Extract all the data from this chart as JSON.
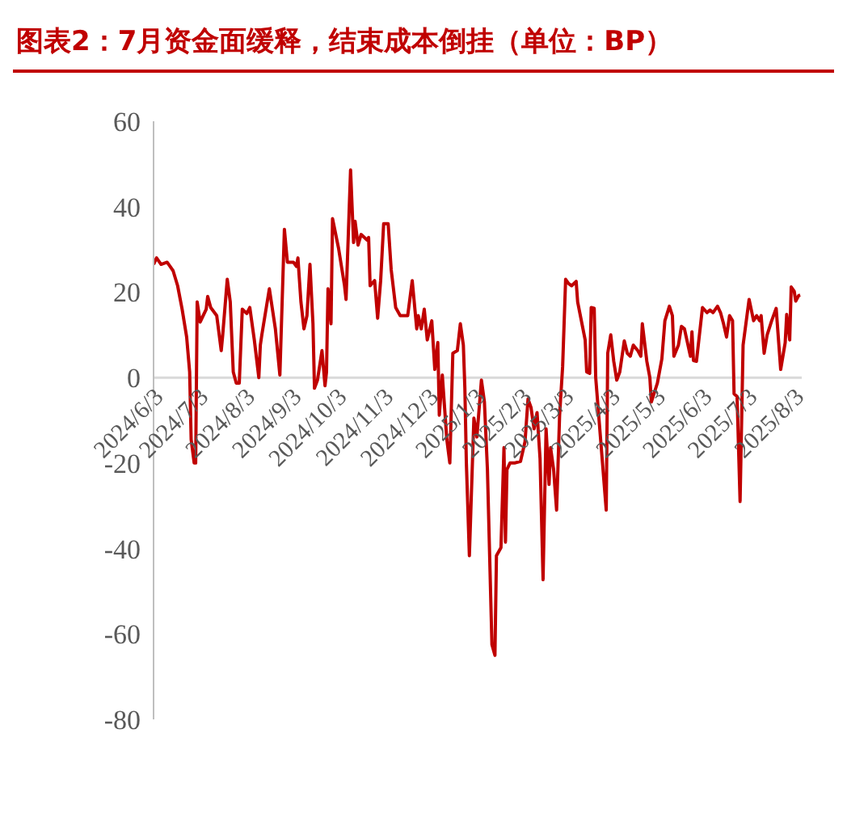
{
  "chart_data": {
    "type": "line",
    "title": "图表2：7月资金面缓释，结束成本倒挂（单位：BP）",
    "x": [
      "2024-06-03",
      "2024-06-05",
      "2024-06-08",
      "2024-06-12",
      "2024-06-14",
      "2024-06-16",
      "2024-06-19",
      "2024-06-22",
      "2024-06-25",
      "2024-06-27",
      "2024-06-28",
      "2024-06-30",
      "2024-07-01",
      "2024-07-02",
      "2024-07-04",
      "2024-07-08",
      "2024-07-09",
      "2024-07-11",
      "2024-07-15",
      "2024-07-18",
      "2024-07-19",
      "2024-07-22",
      "2024-07-24",
      "2024-07-26",
      "2024-07-28",
      "2024-07-30",
      "2024-08-01",
      "2024-08-04",
      "2024-08-06",
      "2024-08-09",
      "2024-08-12",
      "2024-08-13",
      "2024-08-14",
      "2024-08-19",
      "2024-08-23",
      "2024-08-26",
      "2024-08-29",
      "2024-08-31",
      "2024-09-04",
      "2024-09-06",
      "2024-09-07",
      "2024-09-09",
      "2024-09-11",
      "2024-09-13",
      "2024-09-15",
      "2024-09-17",
      "2024-09-18",
      "2024-09-20",
      "2024-09-23",
      "2024-09-25",
      "2024-09-26",
      "2024-09-27",
      "2024-09-29",
      "2024-09-30",
      "2024-10-04",
      "2024-10-08",
      "2024-10-09",
      "2024-10-12",
      "2024-10-14",
      "2024-10-15",
      "2024-10-17",
      "2024-10-19",
      "2024-10-23",
      "2024-10-24",
      "2024-10-25",
      "2024-10-28",
      "2024-10-30",
      "2024-11-01",
      "2024-11-03",
      "2024-11-06",
      "2024-11-08",
      "2024-11-11",
      "2024-11-14",
      "2024-11-19",
      "2024-11-22",
      "2024-11-25",
      "2024-11-26",
      "2024-11-28",
      "2024-11-30",
      "2024-12-02",
      "2024-12-05",
      "2024-12-07",
      "2024-12-09",
      "2024-12-10",
      "2024-12-12",
      "2024-12-15",
      "2024-12-17",
      "2024-12-19",
      "2024-12-22",
      "2024-12-24",
      "2024-12-26",
      "2024-12-27",
      "2024-12-28",
      "2024-12-30",
      "2025-01-02",
      "2025-01-04",
      "2025-01-06",
      "2025-01-07",
      "2025-01-09",
      "2025-01-11",
      "2025-01-14",
      "2025-01-16",
      "2025-01-17",
      "2025-01-20",
      "2025-01-22",
      "2025-01-23",
      "2025-01-24",
      "2025-01-26",
      "2025-01-29",
      "2025-02-02",
      "2025-02-05",
      "2025-02-07",
      "2025-02-09",
      "2025-02-11",
      "2025-02-13",
      "2025-02-15",
      "2025-02-17",
      "2025-02-19",
      "2025-02-21",
      "2025-02-22",
      "2025-02-24",
      "2025-02-26",
      "2025-02-28",
      "2025-03-02",
      "2025-03-04",
      "2025-03-06",
      "2025-03-08",
      "2025-03-11",
      "2025-03-12",
      "2025-03-17",
      "2025-03-18",
      "2025-03-20",
      "2025-03-21",
      "2025-03-23",
      "2025-03-24",
      "2025-03-31",
      "2025-04-01",
      "2025-04-03",
      "2025-04-05",
      "2025-04-07",
      "2025-04-09",
      "2025-04-12",
      "2025-04-14",
      "2025-04-16",
      "2025-04-18",
      "2025-04-21",
      "2025-04-23",
      "2025-04-24",
      "2025-04-27",
      "2025-04-29",
      "2025-04-30",
      "2025-05-04",
      "2025-05-07",
      "2025-05-09",
      "2025-05-12",
      "2025-05-14",
      "2025-05-15",
      "2025-05-18",
      "2025-05-20",
      "2025-05-22",
      "2025-05-26",
      "2025-05-27",
      "2025-05-28",
      "2025-05-30",
      "2025-06-03",
      "2025-06-06",
      "2025-06-08",
      "2025-06-10",
      "2025-06-13",
      "2025-06-15",
      "2025-06-17",
      "2025-06-19",
      "2025-06-21",
      "2025-06-23",
      "2025-06-24",
      "2025-06-26",
      "2025-06-28",
      "2025-06-30",
      "2025-07-04",
      "2025-07-07",
      "2025-07-09",
      "2025-07-11",
      "2025-07-12",
      "2025-07-14",
      "2025-07-16",
      "2025-07-19",
      "2025-07-22",
      "2025-07-25",
      "2025-07-28",
      "2025-07-29",
      "2025-07-31",
      "2025-08-01",
      "2025-08-03",
      "2025-08-04",
      "2025-08-06",
      "2025-08-07"
    ],
    "series": [
      {
        "color": "#c00000",
        "values": [
          26.5,
          28,
          26.5,
          27,
          26,
          25,
          21.5,
          16,
          9.5,
          1.3,
          -14.5,
          -20,
          -20,
          17.7,
          13,
          16,
          19,
          16.4,
          14.5,
          6.3,
          10,
          23,
          17.7,
          1.3,
          -1.3,
          -1.3,
          16,
          15,
          16.4,
          8.8,
          0,
          7.6,
          10,
          20.8,
          11.4,
          0.6,
          34.7,
          27,
          27,
          26,
          28,
          17.7,
          11.4,
          14.5,
          26.5,
          12.6,
          -2.5,
          -0.6,
          6.3,
          -1.9,
          1.3,
          20.8,
          12.6,
          37.2,
          30.3,
          21.5,
          18.3,
          48.6,
          31.6,
          36.6,
          31,
          33.5,
          32.2,
          32.8,
          21.5,
          22.7,
          13.9,
          22.7,
          36,
          36,
          25.3,
          16.4,
          14.5,
          14.5,
          22.7,
          11.4,
          14.5,
          11.4,
          16,
          8.8,
          13.3,
          1.9,
          8.2,
          -8.8,
          0.6,
          -14.5,
          -20,
          5.7,
          6.3,
          12.6,
          7.6,
          -2.5,
          -20,
          -41.7,
          -9.5,
          -13.9,
          -5,
          -0.6,
          -5.7,
          -21.5,
          -62.5,
          -65,
          -41.7,
          -39.8,
          -16.4,
          -38.5,
          -21.5,
          -20,
          -20,
          -19.6,
          -15,
          -5,
          -7,
          -12,
          -8.2,
          -19,
          -47.3,
          -12,
          -25,
          -16.4,
          -21.5,
          -31,
          -8.8,
          2.5,
          23,
          22,
          21.5,
          22.5,
          17.7,
          8.8,
          1.3,
          1,
          16.4,
          16.2,
          0,
          -31,
          5.7,
          10,
          3.8,
          -0.6,
          1.3,
          8.6,
          5.7,
          5,
          7.6,
          6.3,
          5,
          12.6,
          3.8,
          0,
          -5.7,
          -1.3,
          4.4,
          13.3,
          16.7,
          14.5,
          5,
          7.6,
          12,
          11.4,
          5,
          10.7,
          4,
          3.8,
          16.4,
          15.2,
          15.8,
          15.2,
          16.7,
          15.2,
          12.6,
          9.5,
          14.5,
          13.3,
          -3.8,
          -4.4,
          -29,
          7.6,
          18.3,
          13.3,
          14.5,
          13.3,
          14.5,
          5.7,
          10,
          13.3,
          16.2,
          1.9,
          8.2,
          14.8,
          8.8,
          21.2,
          20.2,
          17.9,
          19.2,
          19.3
        ]
      }
    ],
    "xlim": [
      "2024-06-03",
      "2025-08-08"
    ],
    "xticks": [
      {
        "value": "2024-06-03",
        "label": "2024/6/3"
      },
      {
        "value": "2024-07-03",
        "label": "2024/7/3"
      },
      {
        "value": "2024-08-03",
        "label": "2024/8/3"
      },
      {
        "value": "2024-09-03",
        "label": "2024/9/3"
      },
      {
        "value": "2024-10-03",
        "label": "2024/10/3"
      },
      {
        "value": "2024-11-03",
        "label": "2024/11/3"
      },
      {
        "value": "2024-12-03",
        "label": "2024/12/3"
      },
      {
        "value": "2025-01-03",
        "label": "2025/1/3"
      },
      {
        "value": "2025-02-03",
        "label": "2025/2/3"
      },
      {
        "value": "2025-03-03",
        "label": "2025/3/3"
      },
      {
        "value": "2025-04-03",
        "label": "2025/4/3"
      },
      {
        "value": "2025-05-03",
        "label": "2025/5/3"
      },
      {
        "value": "2025-06-03",
        "label": "2025/6/3"
      },
      {
        "value": "2025-07-03",
        "label": "2025/7/3"
      },
      {
        "value": "2025-08-03",
        "label": "2025/8/3"
      }
    ],
    "ylim": [
      -80,
      60
    ],
    "yticks": [
      -80,
      -60,
      -40,
      -20,
      0,
      20,
      40,
      60
    ],
    "grid": false,
    "legend": false,
    "marker": "none",
    "line_style": "solid"
  }
}
